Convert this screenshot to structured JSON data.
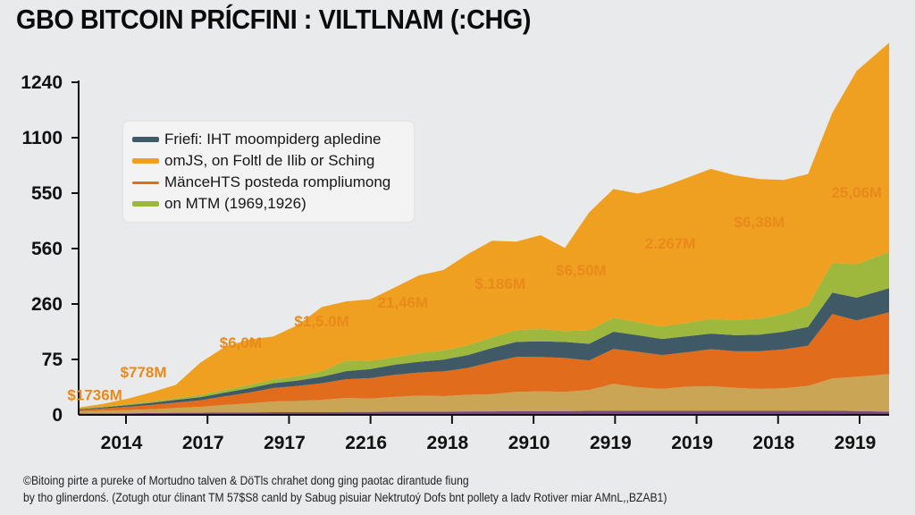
{
  "chart_data": {
    "type": "area",
    "stacked": true,
    "title": "GBO BITCOIN PRÍCFINI : VILTLNAM (:CHG)",
    "xlabel": "",
    "ylabel": "",
    "x_tick_labels": [
      "2014",
      "2017",
      "2917",
      "2216",
      "2918",
      "2910",
      "2919",
      "2019",
      "2018",
      "2919"
    ],
    "y_tick_labels": [
      "0",
      "75",
      "260",
      "560",
      "550",
      "1100",
      "1240"
    ],
    "y_value_range": [
      0,
      1240
    ],
    "grid": false,
    "legend_position": "top-left",
    "legend": [
      {
        "label": "Friefi: IHT moompiderg apledine",
        "color": "#3f5a66"
      },
      {
        "label": "omJS, on Foltl de Ilib or Sching",
        "color": "#f0a020"
      },
      {
        "label": "MänceHTS posteda rompliumong",
        "color": "#e06c1c"
      },
      {
        "label": "on MTM (1969,1926)",
        "color": "#9db83c"
      }
    ],
    "x": [
      0,
      0.03,
      0.06,
      0.09,
      0.12,
      0.15,
      0.18,
      0.21,
      0.24,
      0.27,
      0.3,
      0.33,
      0.36,
      0.39,
      0.42,
      0.45,
      0.48,
      0.51,
      0.54,
      0.57,
      0.6,
      0.63,
      0.66,
      0.69,
      0.72,
      0.75,
      0.78,
      0.81,
      0.84,
      0.87,
      0.9,
      0.93,
      0.96,
      1.0
    ],
    "series": [
      {
        "name": "purple base",
        "color": "#7a4a7a",
        "values": [
          5,
          6,
          6,
          7,
          8,
          8,
          9,
          9,
          10,
          10,
          10,
          11,
          11,
          12,
          12,
          12,
          13,
          13,
          14,
          14,
          14,
          15,
          16,
          15,
          15,
          15,
          15,
          15,
          15,
          15,
          16,
          16,
          14,
          12
        ]
      },
      {
        "name": "tan",
        "color": "#c9a555",
        "values": [
          8,
          10,
          12,
          14,
          18,
          22,
          28,
          34,
          40,
          42,
          46,
          52,
          50,
          55,
          60,
          58,
          62,
          64,
          72,
          74,
          72,
          78,
          100,
          88,
          82,
          90,
          92,
          86,
          82,
          84,
          92,
          120,
          128,
          140
        ]
      },
      {
        "name": "MänceHTS posteda rompliumong",
        "color": "#e06c1c",
        "values": [
          5,
          8,
          12,
          16,
          20,
          24,
          32,
          40,
          50,
          56,
          62,
          70,
          76,
          82,
          86,
          92,
          100,
          120,
          130,
          128,
          126,
          110,
          130,
          132,
          126,
          128,
          138,
          136,
          140,
          145,
          150,
          240,
          210,
          230
        ]
      },
      {
        "name": "Friefi: IHT moompiderg apledine",
        "color": "#3f5a66",
        "values": [
          3,
          4,
          6,
          8,
          10,
          12,
          14,
          16,
          18,
          20,
          24,
          30,
          34,
          38,
          40,
          44,
          48,
          52,
          56,
          58,
          60,
          62,
          64,
          62,
          60,
          60,
          58,
          60,
          62,
          66,
          70,
          80,
          85,
          90
        ]
      },
      {
        "name": "on MTM (1969,1926)",
        "color": "#9db83c",
        "values": [
          2,
          3,
          4,
          5,
          6,
          8,
          10,
          12,
          14,
          16,
          20,
          40,
          30,
          28,
          32,
          34,
          36,
          40,
          44,
          46,
          40,
          50,
          52,
          48,
          46,
          50,
          54,
          56,
          60,
          66,
          80,
          110,
          125,
          135
        ]
      },
      {
        "name": "omJS, on Foltl de Ilib or Sching",
        "color": "#f0a020",
        "values": [
          4,
          10,
          20,
          34,
          50,
          120,
          160,
          170,
          160,
          190,
          240,
          220,
          230,
          260,
          290,
          300,
          340,
          360,
          330,
          350,
          310,
          440,
          480,
          480,
          520,
          540,
          560,
          540,
          520,
          500,
          490,
          560,
          720,
          780
        ]
      }
    ],
    "annotations": [
      {
        "text": "$1736M",
        "x": 0.02,
        "y": 55
      },
      {
        "text": "$778M",
        "x": 0.08,
        "y": 140
      },
      {
        "text": "$6,0M",
        "x": 0.2,
        "y": 250
      },
      {
        "text": "$1,5.0M",
        "x": 0.3,
        "y": 330
      },
      {
        "text": "21,46M",
        "x": 0.4,
        "y": 400
      },
      {
        "text": "$.186M",
        "x": 0.52,
        "y": 470
      },
      {
        "text": "$6,50M",
        "x": 0.62,
        "y": 520
      },
      {
        "text": "2.267M",
        "x": 0.73,
        "y": 620
      },
      {
        "text": "$6,38M",
        "x": 0.84,
        "y": 700
      },
      {
        "text": "25,06M",
        "x": 0.96,
        "y": 810
      }
    ]
  },
  "caption": {
    "line1": "©Bitoing pirte a pureke of Mortudno talven & DöTls chrahet dong ging paotac dirantude fiung",
    "line2": "by tho glinerdonś. (Zotugh otur ćlinant TM 57$S8 canld by Sabug pisuiar Nektrutoý Dofs bnt pollety a ladv Rotiver miar AMnL,,BZAB1)"
  }
}
